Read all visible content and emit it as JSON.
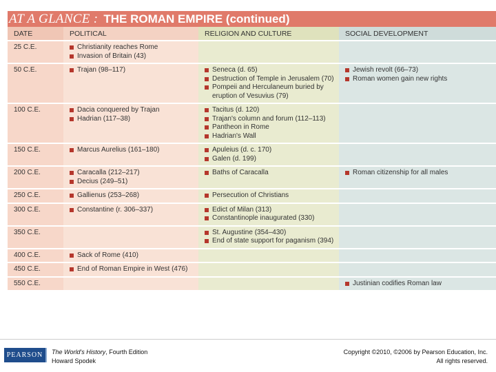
{
  "title": {
    "prefix": "AT A GLANCE :",
    "main": "THE ROMAN EMPIRE (continued)"
  },
  "table": {
    "headers": {
      "date": "DATE",
      "political": "POLITICAL",
      "religion_culture": "RELIGION AND CULTURE",
      "social": "SOCIAL DEVELOPMENT"
    },
    "rows": [
      {
        "date": "25 C.E.",
        "political": [
          "Christianity reaches Rome",
          "Invasion of Britain (43)"
        ],
        "religion_culture": [],
        "social": []
      },
      {
        "date": "50 C.E.",
        "political": [
          "Trajan (98–117)"
        ],
        "religion_culture": [
          "Seneca (d. 65)",
          "Destruction of Temple in Jerusalem (70)",
          "Pompeii and Herculaneum buried by eruption of Vesuvius (79)"
        ],
        "social": [
          "Jewish revolt (66–73)",
          "Roman women gain new rights"
        ]
      },
      {
        "date": "100 C.E.",
        "political": [
          "Dacia conquered by Trajan",
          "Hadrian (117–38)"
        ],
        "religion_culture": [
          "Tacitus (d. 120)",
          "Trajan's column and forum (112–113)",
          "Pantheon in Rome",
          "Hadrian's Wall"
        ],
        "social": []
      },
      {
        "date": "150 C.E.",
        "political": [
          "Marcus Aurelius (161–180)"
        ],
        "religion_culture": [
          "Apuleius (d. c. 170)",
          "Galen (d. 199)"
        ],
        "social": []
      },
      {
        "date": "200 C.E.",
        "political": [
          "Caracalla (212–217)",
          "Decius (249–51)"
        ],
        "religion_culture": [
          "Baths of Caracalla"
        ],
        "social": [
          "Roman citizenship for all males"
        ]
      },
      {
        "date": "250 C.E.",
        "political": [
          "Gallienus (253–268)"
        ],
        "religion_culture": [
          "Persecution of Christians"
        ],
        "social": []
      },
      {
        "date": "300 C.E.",
        "political": [
          "Constantine (r. 306–337)"
        ],
        "religion_culture": [
          "Edict of Milan (313)",
          "Constantinople inaugurated (330)"
        ],
        "social": []
      },
      {
        "date": "350 C.E.",
        "political": [],
        "religion_culture": [
          "St. Augustine (354–430)",
          "End of state support for paganism (394)"
        ],
        "social": []
      },
      {
        "date": "400 C.E.",
        "political": [
          "Sack of Rome (410)"
        ],
        "religion_culture": [],
        "social": []
      },
      {
        "date": "450 C.E.",
        "political": [
          "End of Roman Empire in West (476)"
        ],
        "religion_culture": [],
        "social": []
      },
      {
        "date": "550 C.E.",
        "political": [],
        "religion_culture": [],
        "social": [
          "Justinian codifies Roman law"
        ]
      }
    ]
  },
  "footer": {
    "logo_text": "PEARSON",
    "book_title": "The World's History",
    "edition": ", Fourth Edition",
    "author": "Howard Spodek",
    "copyright_line1": "Copyright ©2010, ©2006 by Pearson Education, Inc.",
    "copyright_line2": "All rights reserved."
  },
  "colors": {
    "title_bar": "#e07a6a",
    "bullet": "#b5372c",
    "date_column": "#f7d7c9",
    "political_column": "#f9e2d6",
    "religion_column": "#e9ebd0",
    "social_column": "#dbe6e4",
    "logo_bg": "#1f4d8c"
  }
}
